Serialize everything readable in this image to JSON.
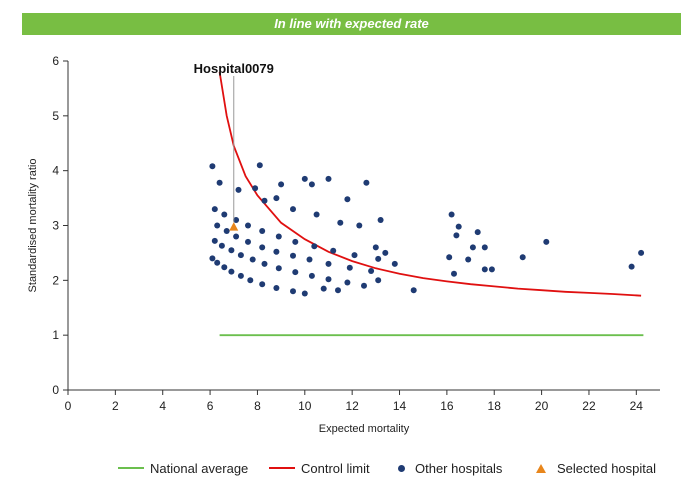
{
  "banner": {
    "text": "In line with expected rate"
  },
  "colors": {
    "banner": "#78be43",
    "national_average": "#6bbf4e",
    "control_limit": "#e01010",
    "other_hospitals": "#1f3b73",
    "selected_hospital": "#e8861c"
  },
  "chart_data": {
    "type": "scatter",
    "xlabel": "Expected mortality",
    "ylabel": "Standardised mortality ratio",
    "xlim": [
      0,
      25
    ],
    "ylim": [
      0,
      6
    ],
    "xticks": [
      0,
      2,
      4,
      6,
      8,
      10,
      12,
      14,
      16,
      18,
      20,
      22,
      24
    ],
    "yticks": [
      0,
      1,
      2,
      3,
      4,
      5,
      6
    ],
    "grid": false,
    "legend_position": "bottom",
    "series": [
      {
        "name": "National average",
        "kind": "line",
        "points": [
          [
            6.4,
            1.0
          ],
          [
            24.3,
            1.0
          ]
        ]
      },
      {
        "name": "Control limit",
        "kind": "line",
        "points": [
          [
            6.4,
            5.8
          ],
          [
            6.7,
            5.0
          ],
          [
            7.0,
            4.45
          ],
          [
            7.5,
            3.9
          ],
          [
            8.0,
            3.55
          ],
          [
            9.0,
            3.05
          ],
          [
            10.0,
            2.75
          ],
          [
            11.0,
            2.52
          ],
          [
            12.0,
            2.35
          ],
          [
            13.0,
            2.22
          ],
          [
            14.0,
            2.12
          ],
          [
            15.0,
            2.04
          ],
          [
            16.0,
            1.98
          ],
          [
            17.0,
            1.93
          ],
          [
            18.0,
            1.89
          ],
          [
            19.0,
            1.85
          ],
          [
            20.0,
            1.82
          ],
          [
            21.0,
            1.79
          ],
          [
            22.0,
            1.77
          ],
          [
            23.0,
            1.75
          ],
          [
            24.2,
            1.72
          ]
        ]
      },
      {
        "name": "Other hospitals",
        "kind": "scatter",
        "points": [
          [
            6.1,
            2.4
          ],
          [
            6.3,
            2.32
          ],
          [
            6.6,
            2.24
          ],
          [
            6.9,
            2.16
          ],
          [
            7.3,
            2.08
          ],
          [
            7.7,
            2.0
          ],
          [
            8.2,
            1.93
          ],
          [
            8.8,
            1.86
          ],
          [
            9.5,
            1.8
          ],
          [
            10.0,
            1.76
          ],
          [
            6.2,
            2.72
          ],
          [
            6.5,
            2.63
          ],
          [
            6.9,
            2.55
          ],
          [
            7.3,
            2.46
          ],
          [
            7.8,
            2.38
          ],
          [
            8.3,
            2.3
          ],
          [
            8.9,
            2.22
          ],
          [
            9.6,
            2.15
          ],
          [
            10.3,
            2.08
          ],
          [
            11.0,
            2.02
          ],
          [
            11.8,
            1.96
          ],
          [
            12.5,
            1.9
          ],
          [
            6.3,
            3.0
          ],
          [
            6.7,
            2.9
          ],
          [
            7.1,
            2.8
          ],
          [
            7.6,
            2.7
          ],
          [
            8.2,
            2.6
          ],
          [
            8.8,
            2.52
          ],
          [
            9.5,
            2.45
          ],
          [
            10.2,
            2.38
          ],
          [
            11.0,
            2.3
          ],
          [
            11.9,
            2.23
          ],
          [
            12.8,
            2.17
          ],
          [
            6.2,
            3.3
          ],
          [
            6.6,
            3.2
          ],
          [
            7.1,
            3.1
          ],
          [
            7.6,
            3.0
          ],
          [
            8.2,
            2.9
          ],
          [
            8.9,
            2.8
          ],
          [
            9.6,
            2.7
          ],
          [
            10.4,
            2.62
          ],
          [
            11.2,
            2.54
          ],
          [
            12.1,
            2.46
          ],
          [
            13.1,
            2.39
          ],
          [
            6.1,
            4.08
          ],
          [
            6.4,
            3.78
          ],
          [
            7.2,
            3.65
          ],
          [
            7.9,
            3.68
          ],
          [
            8.1,
            4.1
          ],
          [
            8.3,
            3.45
          ],
          [
            8.8,
            3.5
          ],
          [
            9.0,
            3.75
          ],
          [
            9.5,
            3.3
          ],
          [
            10.0,
            3.85
          ],
          [
            10.3,
            3.75
          ],
          [
            10.5,
            3.2
          ],
          [
            11.0,
            3.85
          ],
          [
            11.5,
            3.05
          ],
          [
            11.8,
            3.48
          ],
          [
            12.3,
            3.0
          ],
          [
            12.6,
            3.78
          ],
          [
            13.2,
            3.1
          ],
          [
            13.0,
            2.6
          ],
          [
            13.4,
            2.5
          ],
          [
            13.8,
            2.3
          ],
          [
            13.1,
            2.0
          ],
          [
            14.6,
            1.82
          ],
          [
            10.8,
            1.85
          ],
          [
            11.4,
            1.82
          ],
          [
            16.2,
            3.2
          ],
          [
            16.5,
            2.98
          ],
          [
            16.4,
            2.82
          ],
          [
            16.1,
            2.42
          ],
          [
            16.3,
            2.12
          ],
          [
            16.9,
            2.38
          ],
          [
            17.1,
            2.6
          ],
          [
            17.3,
            2.88
          ],
          [
            17.6,
            2.6
          ],
          [
            17.6,
            2.2
          ],
          [
            17.9,
            2.2
          ],
          [
            19.2,
            2.42
          ],
          [
            20.2,
            2.7
          ],
          [
            23.8,
            2.25
          ],
          [
            24.2,
            2.5
          ]
        ]
      },
      {
        "name": "Selected hospital",
        "kind": "scatter",
        "points": [
          [
            7.0,
            2.97
          ]
        ]
      }
    ],
    "annotations": [
      {
        "text": "Hospital0079",
        "x": 7.0,
        "y": 2.97
      }
    ]
  },
  "legend": [
    {
      "label": "National average",
      "marker": "line",
      "color": "#6bbf4e"
    },
    {
      "label": "Control limit",
      "marker": "line",
      "color": "#e01010"
    },
    {
      "label": "Other hospitals",
      "marker": "dot",
      "color": "#1f3b73"
    },
    {
      "label": "Selected hospital",
      "marker": "triangle",
      "color": "#e8861c"
    }
  ]
}
